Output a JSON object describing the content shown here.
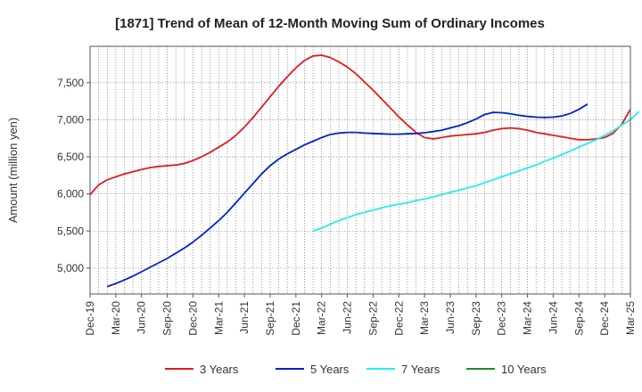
{
  "chart_data": {
    "type": "line",
    "title": "[1871]  Trend of Mean of 12-Month Moving Sum of Ordinary Incomes",
    "xlabel": "",
    "ylabel": "Amount (million yen)",
    "ylim": [
      4650,
      7990
    ],
    "yticks": [
      5000,
      5500,
      6000,
      6500,
      7000,
      7500
    ],
    "ytick_labels": [
      "5,000",
      "5,500",
      "6,000",
      "6,500",
      "7,000",
      "7,500"
    ],
    "xtick_labels": [
      "Dec-19",
      "Mar-20",
      "Jun-20",
      "Sep-20",
      "Dec-20",
      "Mar-21",
      "Jun-21",
      "Sep-21",
      "Dec-21",
      "Mar-22",
      "Jun-22",
      "Sep-22",
      "Dec-22",
      "Mar-23",
      "Jun-23",
      "Sep-23",
      "Dec-23",
      "Mar-24",
      "Jun-24",
      "Sep-24",
      "Dec-24",
      "Mar-25"
    ],
    "grid": true,
    "legend_position": "bottom",
    "series": [
      {
        "name": "3 Years",
        "color": "#e31a1c",
        "start_month": 0,
        "values": [
          5990,
          6120,
          6190,
          6230,
          6270,
          6300,
          6330,
          6355,
          6370,
          6380,
          6390,
          6410,
          6450,
          6500,
          6560,
          6630,
          6700,
          6790,
          6900,
          7030,
          7170,
          7310,
          7450,
          7580,
          7700,
          7800,
          7860,
          7870,
          7840,
          7780,
          7710,
          7620,
          7510,
          7400,
          7280,
          7160,
          7040,
          6930,
          6830,
          6760,
          6740,
          6760,
          6780,
          6790,
          6800,
          6810,
          6830,
          6860,
          6880,
          6890,
          6880,
          6860,
          6830,
          6810,
          6790,
          6770,
          6750,
          6730,
          6730,
          6740,
          6760,
          6820,
          6940,
          7140
        ]
      },
      {
        "name": "5 Years",
        "color": "#0022cc",
        "start_month": 2,
        "values": [
          4750,
          4790,
          4840,
          4890,
          4950,
          5010,
          5070,
          5130,
          5200,
          5270,
          5350,
          5440,
          5540,
          5640,
          5750,
          5880,
          6010,
          6140,
          6270,
          6380,
          6470,
          6540,
          6600,
          6660,
          6710,
          6760,
          6800,
          6820,
          6830,
          6830,
          6820,
          6815,
          6810,
          6805,
          6805,
          6810,
          6815,
          6825,
          6840,
          6860,
          6890,
          6920,
          6960,
          7010,
          7070,
          7100,
          7095,
          7080,
          7060,
          7045,
          7035,
          7030,
          7035,
          7050,
          7085,
          7140,
          7210
        ]
      },
      {
        "name": "7 Years",
        "color": "#22eeee",
        "start_month": 26,
        "values": [
          5500,
          5540,
          5590,
          5640,
          5680,
          5720,
          5750,
          5780,
          5810,
          5840,
          5860,
          5880,
          5910,
          5930,
          5960,
          5990,
          6020,
          6050,
          6080,
          6110,
          6150,
          6190,
          6230,
          6270,
          6310,
          6350,
          6390,
          6440,
          6480,
          6530,
          6580,
          6630,
          6680,
          6730,
          6790,
          6850,
          6930,
          7000,
          7110
        ]
      },
      {
        "name": "10 Years",
        "color": "#228b22",
        "start_month": 0,
        "values": []
      }
    ]
  }
}
